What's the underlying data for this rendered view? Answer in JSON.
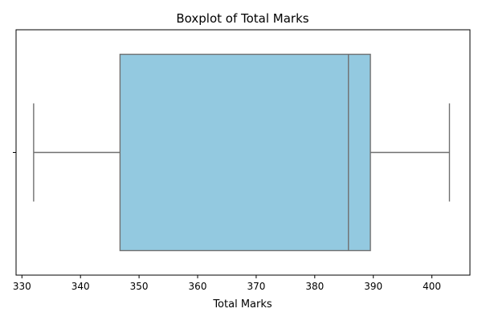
{
  "chart_data": {
    "type": "boxplot",
    "title": "Boxplot of Total Marks",
    "xlabel": "Total Marks",
    "ylabel": "",
    "orientation": "horizontal",
    "xlim": [
      329,
      406.5
    ],
    "xticks": [
      330,
      340,
      350,
      360,
      370,
      380,
      390,
      400
    ],
    "grid": false,
    "box": {
      "whisker_low": 332,
      "q1": 346.75,
      "median": 385.75,
      "q3": 389.5,
      "whisker_high": 403
    },
    "colors": {
      "box_fill": "#93c9e0",
      "line": "#707070",
      "frame": "#000000"
    }
  }
}
